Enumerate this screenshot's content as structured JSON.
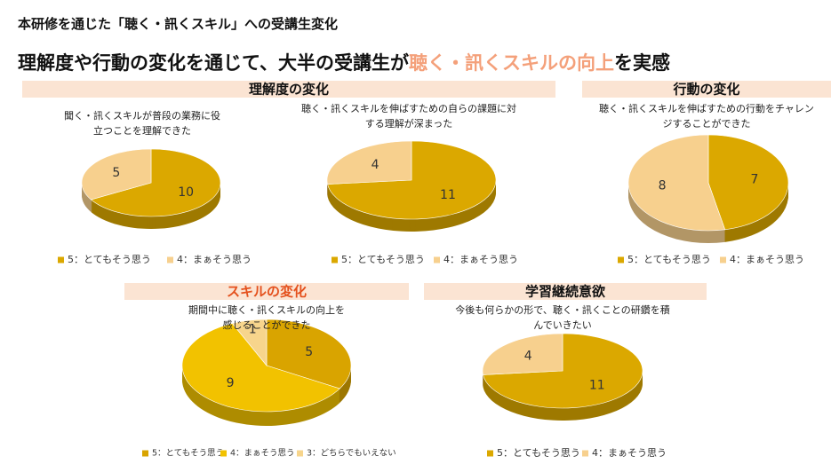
{
  "header": {
    "title": "本研修を通じた「聴く・訊くスキル」への受講生変化",
    "headline": [
      "理解度や行動の変化を通じて、大半の受講生が",
      "聴く・訊くスキルの向上",
      "を実感"
    ]
  },
  "sections": [
    "理解度の変化",
    "行動の変化",
    "スキルの変化",
    "学習継続意欲"
  ],
  "chart_data": [
    {
      "type": "pie",
      "title": "聞く・訊くスキルが普段の業務に役立つことを理解できた",
      "legend": "bottom",
      "categories": [
        "5：とてもそう思う",
        "4：まぁそう思う"
      ],
      "values": [
        10,
        5
      ],
      "colors": [
        "#dba800",
        "#f7d08e"
      ]
    },
    {
      "type": "pie",
      "title": "聴く・訊くスキルを伸ばすための自らの課題に対する理解が深まった",
      "legend": "bottom",
      "categories": [
        "5：とてもそう思う",
        "4：まぁそう思う"
      ],
      "values": [
        11,
        4
      ],
      "colors": [
        "#dba800",
        "#f7d08e"
      ]
    },
    {
      "type": "pie",
      "title": "聴く・訊くスキルを伸ばすための行動をチャレンジすることができた",
      "legend": "bottom",
      "categories": [
        "5：とてもそう思う",
        "4：まぁそう思う"
      ],
      "values": [
        7,
        8
      ],
      "colors": [
        "#dba800",
        "#f7d08e"
      ]
    },
    {
      "type": "pie",
      "title": "期間中に聴く・訊くスキルの向上を感じることができた",
      "legend": "bottom",
      "categories": [
        "5：とてもそう思う",
        "4：まぁそう思う",
        "3：どちらでもいえない"
      ],
      "values": [
        5,
        9,
        1
      ],
      "colors": [
        "#d9a400",
        "#f2c200",
        "#f7d58c"
      ]
    },
    {
      "type": "pie",
      "title": "今後も何らかの形で、聴く・訊くことの研鑽を積んでいきたい",
      "legend": "bottom",
      "categories": [
        "5：とてもそう思う",
        "4：まぁそう思う"
      ],
      "values": [
        11,
        4
      ],
      "colors": [
        "#dba800",
        "#f7d08e"
      ]
    }
  ]
}
